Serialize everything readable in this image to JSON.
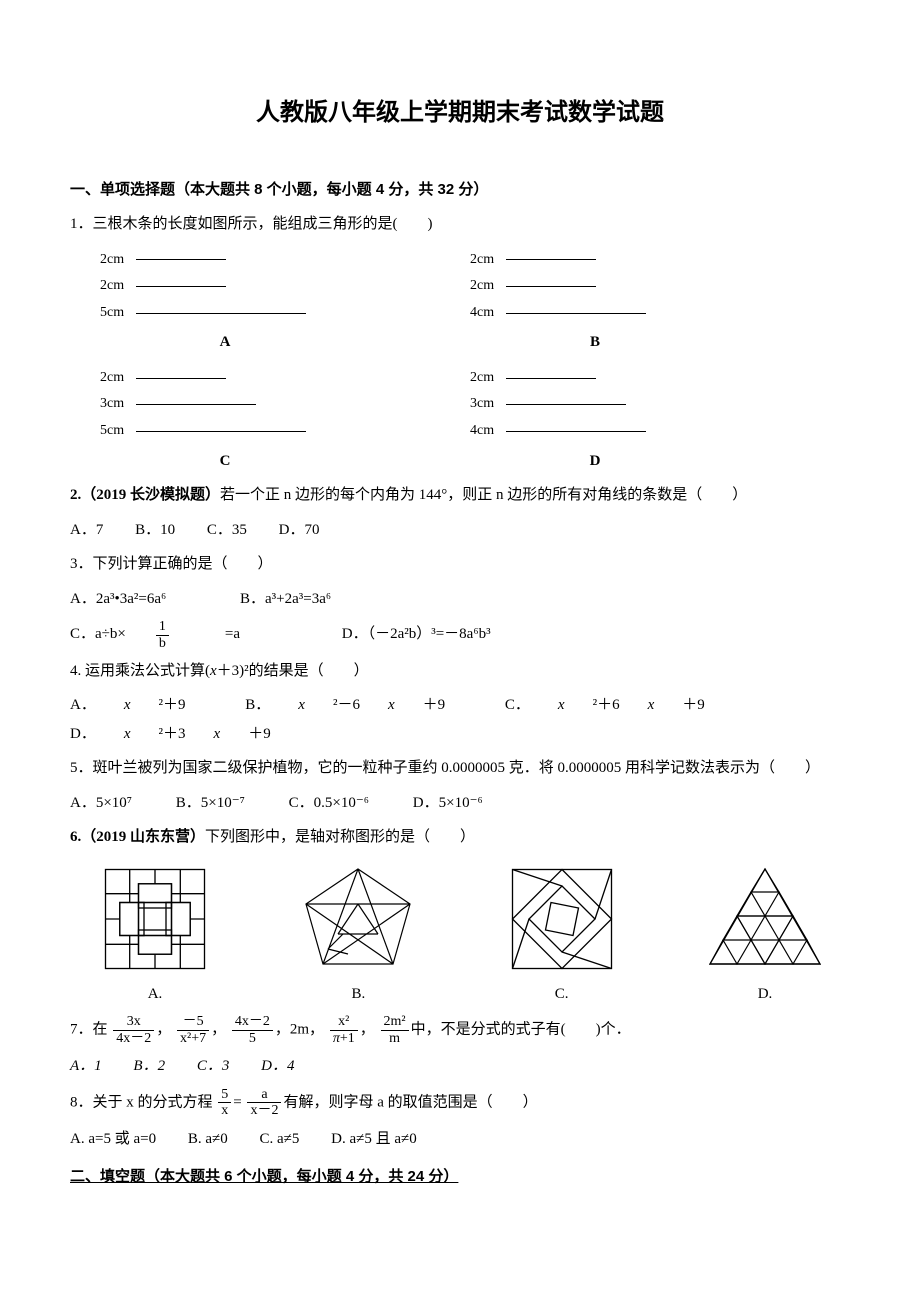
{
  "title": "人教版八年级上学期期末考试数学试题",
  "section1_header": "一、单项选择题（本大题共 8 个小题，每小题 4 分，共 32 分）",
  "q1": {
    "text": "1．三根木条的长度如图所示，能组成三角形的是(　　)",
    "sticks": {
      "A": [
        "2cm",
        "2cm",
        "5cm"
      ],
      "B": [
        "2cm",
        "2cm",
        "4cm"
      ],
      "C": [
        "2cm",
        "3cm",
        "5cm"
      ],
      "D": [
        "2cm",
        "3cm",
        "4cm"
      ]
    },
    "stick_lengths": {
      "2cm": 90,
      "3cm": 120,
      "4cm": 140,
      "5cm": 170
    }
  },
  "q2": {
    "prefix": "2.（2019 长沙模拟题）",
    "text": "若一个正 n 边形的每个内角为 144°，则正 n 边形的所有对角线的条数是（　　）",
    "options": [
      "A．7",
      "B．10",
      "C．35",
      "D．70"
    ]
  },
  "q3": {
    "text": "3．下列计算正确的是（　　）",
    "optA": "A．2a³•3a²=6a⁶",
    "optB": "B．a³+2a³=3a⁶",
    "optC_pre": "C．a÷b×",
    "optC_frac_num": "1",
    "optC_frac_den": "b",
    "optC_post": "=a",
    "optD": "D．（－2a²b）³=－8a⁶b³"
  },
  "q4": {
    "text_pre": "4. 运用乘法公式计算(",
    "text_mid": "＋3)²的结果是（　　）",
    "optA_pre": "A．",
    "optB_pre": "B．",
    "optC_pre": "C．",
    "optD_pre": "D．",
    "optA": "²＋9",
    "optB": "²－6",
    "optB2": "＋9",
    "optC": "²＋6",
    "optC2": "＋9",
    "optD": "²＋3",
    "optD2": "＋9"
  },
  "q5": {
    "text": "5．斑叶兰被列为国家二级保护植物，它的一粒种子重约 0.0000005 克．将 0.0000005 用科学记数法表示为（　　）",
    "options": [
      "A．5×10⁷",
      "B．5×10⁻⁷",
      "C．0.5×10⁻⁶",
      "D．5×10⁻⁶"
    ]
  },
  "q6": {
    "prefix": "6.（2019 山东东营）",
    "text": "下列图形中，是轴对称图形的是（　　）",
    "captions": [
      "A.",
      "B.",
      "C.",
      "D."
    ]
  },
  "q7": {
    "pre": "7．在",
    "f1n": "3x",
    "f1d": "4x－2",
    "f2n": "－5",
    "f2d": "x²+7",
    "f3n": "4x－2",
    "f3d": "5",
    "mid1": "，2m，",
    "f4n": "x²",
    "f4d": "π+1",
    "mid2": "，",
    "f5n": "2m²",
    "f5d": "m",
    "post": "中，不是分式的式子有(　　)个．",
    "options": [
      "A．1",
      "B．2",
      "C．3",
      "D．4"
    ]
  },
  "q8": {
    "pre": "8．关于 x 的分式方程",
    "f1n": "5",
    "f1d": "x",
    "eq": "=",
    "f2n": "a",
    "f2d": "x－2",
    "post": "有解，则字母 a 的取值范围是（　　）",
    "options": [
      "A. a=5 或 a=0",
      "B. a≠0",
      "C. a≠5",
      "D. a≠5 且 a≠0"
    ]
  },
  "section2_header": "二、填空题（本大题共 6 个小题，每小题 4 分，共 24 分）"
}
